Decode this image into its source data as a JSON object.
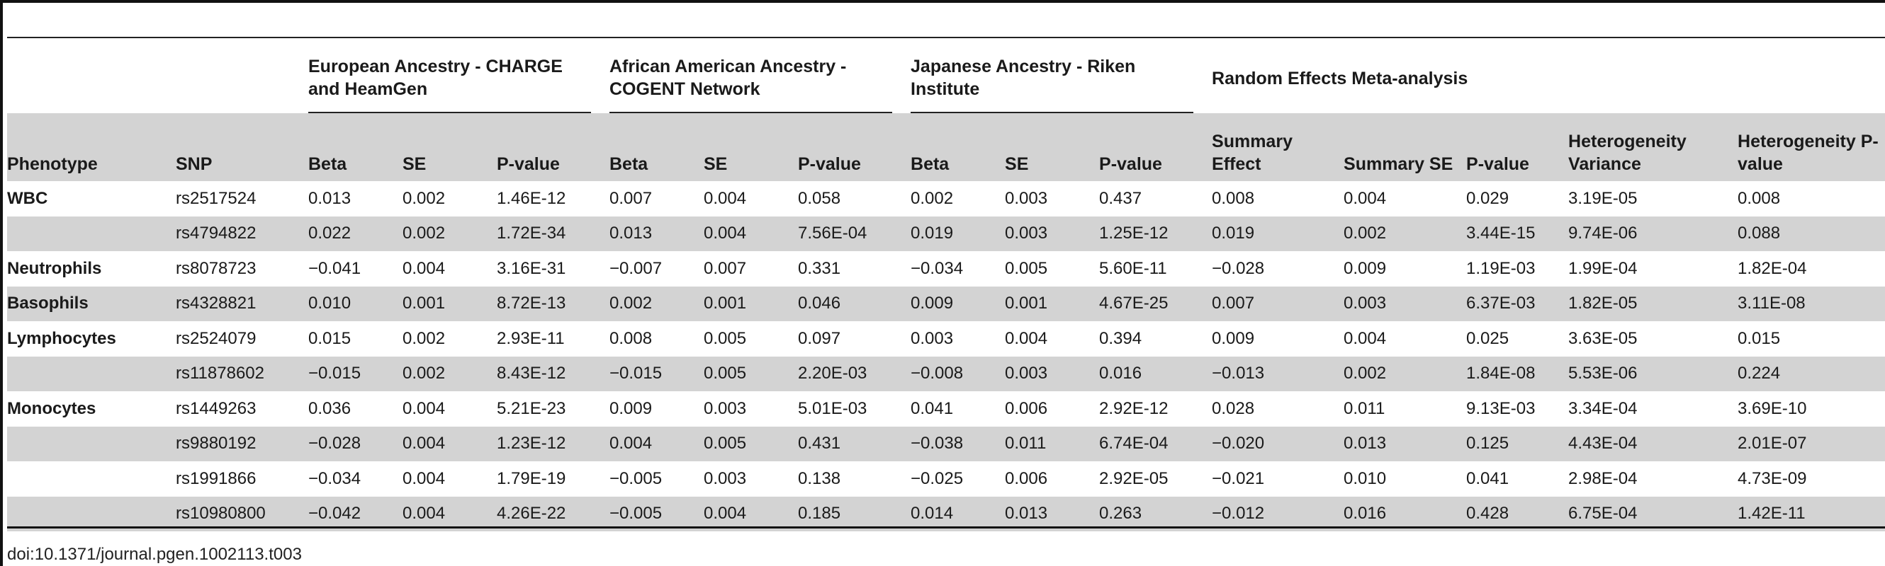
{
  "table": {
    "groups": [
      {
        "label": "European Ancestry - CHARGE and HeamGen"
      },
      {
        "label": "African American Ancestry - COGENT Network"
      },
      {
        "label": "Japanese Ancestry - Riken Institute"
      },
      {
        "label": "Random Effects Meta-analysis"
      }
    ],
    "columns": [
      "Phenotype",
      "SNP",
      "Beta",
      "SE",
      "P-value",
      "Beta",
      "SE",
      "P-value",
      "Beta",
      "SE",
      "P-value",
      "Summary Effect",
      "Summary SE",
      "P-value",
      "Heterogeneity Variance",
      "Heterogeneity P-value"
    ],
    "rows": [
      [
        "WBC",
        "rs2517524",
        "0.013",
        "0.002",
        "1.46E-12",
        "0.007",
        "0.004",
        "0.058",
        "0.002",
        "0.003",
        "0.437",
        "0.008",
        "0.004",
        "0.029",
        "3.19E-05",
        "0.008"
      ],
      [
        "",
        "rs4794822",
        "0.022",
        "0.002",
        "1.72E-34",
        "0.013",
        "0.004",
        "7.56E-04",
        "0.019",
        "0.003",
        "1.25E-12",
        "0.019",
        "0.002",
        "3.44E-15",
        "9.74E-06",
        "0.088"
      ],
      [
        "Neutrophils",
        "rs8078723",
        "−0.041",
        "0.004",
        "3.16E-31",
        "−0.007",
        "0.007",
        "0.331",
        "−0.034",
        "0.005",
        "5.60E-11",
        "−0.028",
        "0.009",
        "1.19E-03",
        "1.99E-04",
        "1.82E-04"
      ],
      [
        "Basophils",
        "rs4328821",
        "0.010",
        "0.001",
        "8.72E-13",
        "0.002",
        "0.001",
        "0.046",
        "0.009",
        "0.001",
        "4.67E-25",
        "0.007",
        "0.003",
        "6.37E-03",
        "1.82E-05",
        "3.11E-08"
      ],
      [
        "Lymphocytes",
        "rs2524079",
        "0.015",
        "0.002",
        "2.93E-11",
        "0.008",
        "0.005",
        "0.097",
        "0.003",
        "0.004",
        "0.394",
        "0.009",
        "0.004",
        "0.025",
        "3.63E-05",
        "0.015"
      ],
      [
        "",
        "rs11878602",
        "−0.015",
        "0.002",
        "8.43E-12",
        "−0.015",
        "0.005",
        "2.20E-03",
        "−0.008",
        "0.003",
        "0.016",
        "−0.013",
        "0.002",
        "1.84E-08",
        "5.53E-06",
        "0.224"
      ],
      [
        "Monocytes",
        "rs1449263",
        "0.036",
        "0.004",
        "5.21E-23",
        "0.009",
        "0.003",
        "5.01E-03",
        "0.041",
        "0.006",
        "2.92E-12",
        "0.028",
        "0.011",
        "9.13E-03",
        "3.34E-04",
        "3.69E-10"
      ],
      [
        "",
        "rs9880192",
        "−0.028",
        "0.004",
        "1.23E-12",
        "0.004",
        "0.005",
        "0.431",
        "−0.038",
        "0.011",
        "6.74E-04",
        "−0.020",
        "0.013",
        "0.125",
        "4.43E-04",
        "2.01E-07"
      ],
      [
        "",
        "rs1991866",
        "−0.034",
        "0.004",
        "1.79E-19",
        "−0.005",
        "0.003",
        "0.138",
        "−0.025",
        "0.006",
        "2.92E-05",
        "−0.021",
        "0.010",
        "0.041",
        "2.98E-04",
        "4.73E-09"
      ],
      [
        "",
        "rs10980800",
        "−0.042",
        "0.004",
        "4.26E-22",
        "−0.005",
        "0.004",
        "0.185",
        "0.014",
        "0.013",
        "0.263",
        "−0.012",
        "0.016",
        "0.428",
        "6.75E-04",
        "1.42E-11"
      ]
    ]
  },
  "doi": "doi:10.1371/journal.pgen.1002113.t003"
}
